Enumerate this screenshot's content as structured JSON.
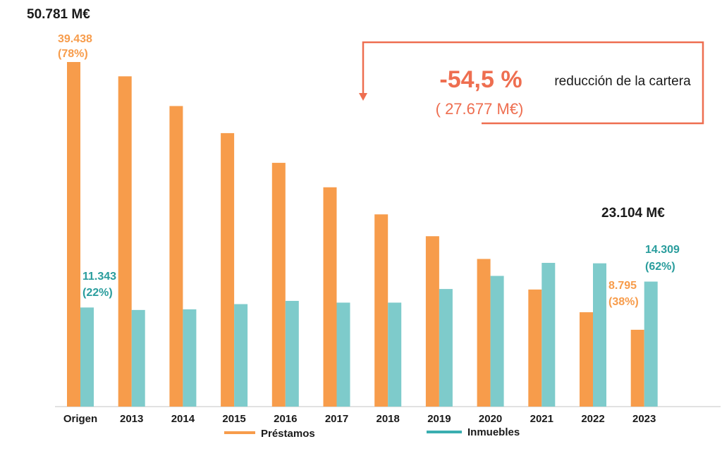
{
  "chart_data": {
    "type": "bar",
    "categories": [
      "Origen",
      "2013",
      "2014",
      "2015",
      "2016",
      "2017",
      "2018",
      "2019",
      "2020",
      "2021",
      "2022",
      "2023"
    ],
    "series": [
      {
        "name": "Préstamos",
        "color": "#f79c4b",
        "values": [
          39438,
          37800,
          34400,
          31300,
          27900,
          25100,
          22000,
          19500,
          16900,
          13400,
          10800,
          8795
        ]
      },
      {
        "name": "Inmuebles",
        "color": "#7ecbcb",
        "values": [
          11343,
          11060,
          11130,
          11730,
          12100,
          11900,
          11900,
          13460,
          14960,
          16450,
          16400,
          14309
        ]
      }
    ],
    "ylim": [
      0,
      40000
    ],
    "grid": false,
    "legend": "bottom",
    "annotations": {
      "total_start": "50.781 M€",
      "prestamos_start_value": "39.438",
      "prestamos_start_pct": "(78%)",
      "inmuebles_start_value": "11.343",
      "inmuebles_start_pct": "(22%)",
      "total_end": "23.104 M€",
      "prestamos_end_value": "8.795",
      "prestamos_end_pct": "(38%)",
      "inmuebles_end_value": "14.309",
      "inmuebles_end_pct": "(62%)",
      "reduction_pct": "-54,5 %",
      "reduction_text": "reducción de la cartera",
      "reduction_amount": "( 27.677 M€)"
    },
    "colors": {
      "annotation": "#ee6e50",
      "text": "#1a1a1a",
      "axis": "#d9d9d9"
    }
  }
}
